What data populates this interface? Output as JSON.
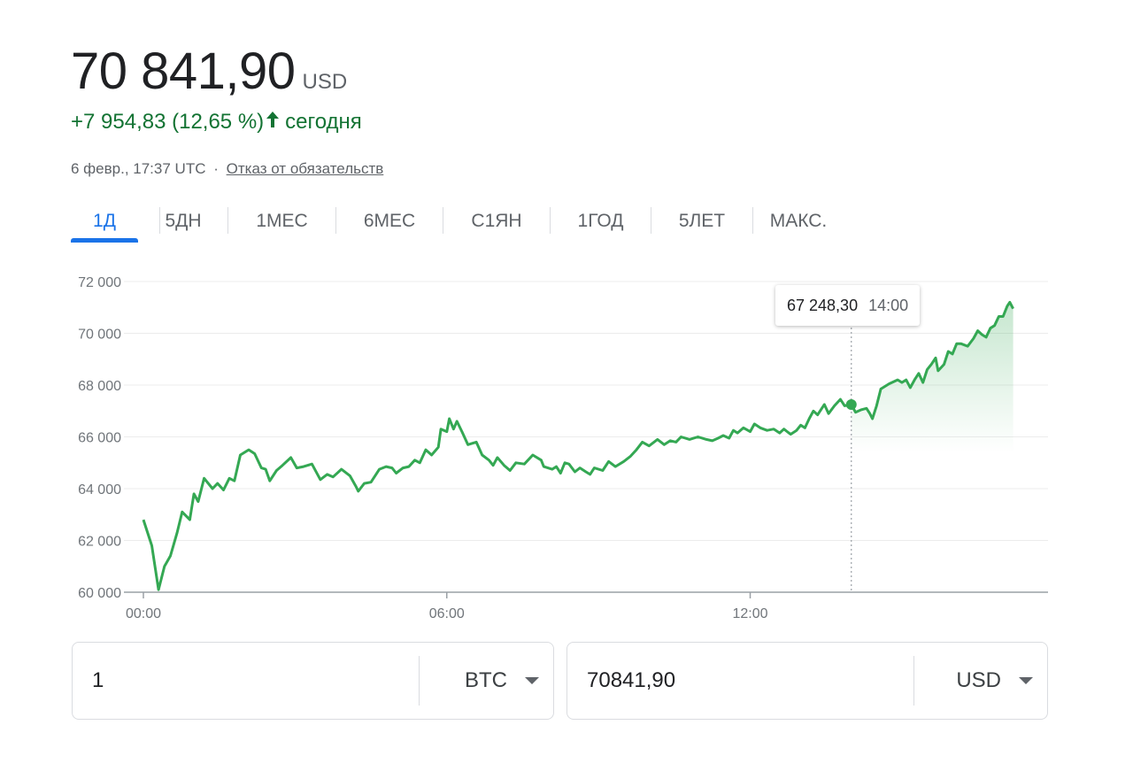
{
  "quote": {
    "price": "70 841,90",
    "currency": "USD",
    "change": "+7 954,83 (12,65 %)",
    "change_direction_icon": "arrow-up-icon",
    "change_suffix": "сегодня",
    "timestamp": "6 февр., 17:37 UTC",
    "separator": "·",
    "disclaimer_link": "Отказ от обязательств"
  },
  "colors": {
    "positive": "#137333",
    "line": "#34a853",
    "accent": "#1a73e8",
    "muted_text": "#5f6368"
  },
  "tabs": [
    {
      "label": "1Д",
      "active": true
    },
    {
      "label": "5ДН",
      "active": false
    },
    {
      "label": "1МЕС",
      "active": false
    },
    {
      "label": "6МЕС",
      "active": false
    },
    {
      "label": "С1ЯН",
      "active": false
    },
    {
      "label": "1ГОД",
      "active": false
    },
    {
      "label": "5ЛЕТ",
      "active": false
    },
    {
      "label": "МАКС.",
      "active": false
    }
  ],
  "tooltip": {
    "value": "67 248,30",
    "time": "14:00"
  },
  "chart_data": {
    "type": "area",
    "title": "",
    "xlabel": "",
    "ylabel": "",
    "ylim": [
      60000,
      72000
    ],
    "xlim": [
      "00:00",
      "17:45"
    ],
    "y_ticks": [
      "60 000",
      "62 000",
      "64 000",
      "66 000",
      "68 000",
      "70 000",
      "72 000"
    ],
    "x_ticks": [
      "00:00",
      "06:00",
      "12:00"
    ],
    "grid": true,
    "area_fill_from": "14:00",
    "highlight": {
      "time": "14:00",
      "value": 67248.3
    },
    "series": [
      {
        "values": [
          [
            "00:00",
            62800
          ],
          [
            "00:10",
            61800
          ],
          [
            "00:18",
            60100
          ],
          [
            "00:25",
            61000
          ],
          [
            "00:32",
            61400
          ],
          [
            "00:40",
            62300
          ],
          [
            "00:46",
            63100
          ],
          [
            "00:55",
            62800
          ],
          [
            "01:00",
            63800
          ],
          [
            "01:05",
            63500
          ],
          [
            "01:12",
            64400
          ],
          [
            "01:22",
            64000
          ],
          [
            "01:28",
            64200
          ],
          [
            "01:35",
            63950
          ],
          [
            "01:42",
            64400
          ],
          [
            "01:48",
            64300
          ],
          [
            "01:55",
            65300
          ],
          [
            "02:05",
            65500
          ],
          [
            "02:12",
            65350
          ],
          [
            "02:20",
            64800
          ],
          [
            "02:25",
            64750
          ],
          [
            "02:30",
            64300
          ],
          [
            "02:38",
            64700
          ],
          [
            "02:45",
            64900
          ],
          [
            "02:55",
            65200
          ],
          [
            "03:02",
            64800
          ],
          [
            "03:10",
            64850
          ],
          [
            "03:20",
            64950
          ],
          [
            "03:30",
            64350
          ],
          [
            "03:38",
            64550
          ],
          [
            "03:45",
            64450
          ],
          [
            "03:55",
            64750
          ],
          [
            "04:05",
            64500
          ],
          [
            "04:12",
            64100
          ],
          [
            "04:15",
            63900
          ],
          [
            "04:22",
            64200
          ],
          [
            "04:30",
            64250
          ],
          [
            "04:40",
            64750
          ],
          [
            "04:48",
            64850
          ],
          [
            "04:55",
            64800
          ],
          [
            "05:00",
            64600
          ],
          [
            "05:08",
            64800
          ],
          [
            "05:15",
            64850
          ],
          [
            "05:22",
            65100
          ],
          [
            "05:28",
            65000
          ],
          [
            "05:35",
            65500
          ],
          [
            "05:42",
            65300
          ],
          [
            "05:50",
            65600
          ],
          [
            "05:53",
            66300
          ],
          [
            "06:00",
            66200
          ],
          [
            "06:03",
            66700
          ],
          [
            "06:08",
            66300
          ],
          [
            "06:12",
            66600
          ],
          [
            "06:18",
            66200
          ],
          [
            "06:25",
            65700
          ],
          [
            "06:35",
            65800
          ],
          [
            "06:42",
            65300
          ],
          [
            "06:50",
            65100
          ],
          [
            "06:55",
            64900
          ],
          [
            "07:00",
            65200
          ],
          [
            "07:08",
            64900
          ],
          [
            "07:15",
            64700
          ],
          [
            "07:22",
            65000
          ],
          [
            "07:32",
            64950
          ],
          [
            "07:42",
            65300
          ],
          [
            "07:52",
            65100
          ],
          [
            "07:55",
            64850
          ],
          [
            "08:05",
            64750
          ],
          [
            "08:10",
            64850
          ],
          [
            "08:15",
            64600
          ],
          [
            "08:20",
            65000
          ],
          [
            "08:25",
            64950
          ],
          [
            "08:32",
            64650
          ],
          [
            "08:38",
            64800
          ],
          [
            "08:45",
            64650
          ],
          [
            "08:50",
            64550
          ],
          [
            "08:55",
            64800
          ],
          [
            "09:05",
            64700
          ],
          [
            "09:12",
            65050
          ],
          [
            "09:20",
            64850
          ],
          [
            "09:30",
            65050
          ],
          [
            "09:38",
            65250
          ],
          [
            "09:45",
            65500
          ],
          [
            "09:52",
            65800
          ],
          [
            "10:00",
            65650
          ],
          [
            "10:10",
            65900
          ],
          [
            "10:18",
            65700
          ],
          [
            "10:25",
            65850
          ],
          [
            "10:32",
            65800
          ],
          [
            "10:38",
            66000
          ],
          [
            "10:48",
            65900
          ],
          [
            "10:58",
            66000
          ],
          [
            "11:08",
            65900
          ],
          [
            "11:15",
            65850
          ],
          [
            "11:22",
            65950
          ],
          [
            "11:28",
            66050
          ],
          [
            "11:35",
            65950
          ],
          [
            "11:40",
            66250
          ],
          [
            "11:45",
            66150
          ],
          [
            "11:52",
            66350
          ],
          [
            "12:00",
            66200
          ],
          [
            "12:05",
            66500
          ],
          [
            "12:12",
            66350
          ],
          [
            "12:20",
            66250
          ],
          [
            "12:28",
            66300
          ],
          [
            "12:35",
            66150
          ],
          [
            "12:40",
            66300
          ],
          [
            "12:48",
            66100
          ],
          [
            "12:55",
            66250
          ],
          [
            "13:00",
            66450
          ],
          [
            "13:05",
            66350
          ],
          [
            "13:10",
            66700
          ],
          [
            "13:15",
            67000
          ],
          [
            "13:20",
            66850
          ],
          [
            "13:28",
            67250
          ],
          [
            "13:33",
            66900
          ],
          [
            "13:40",
            67200
          ],
          [
            "13:47",
            67450
          ],
          [
            "13:52",
            67200
          ],
          [
            "14:00",
            67248
          ],
          [
            "14:05",
            66950
          ],
          [
            "14:12",
            67050
          ],
          [
            "14:18",
            67100
          ],
          [
            "14:22",
            66900
          ],
          [
            "14:25",
            66700
          ],
          [
            "14:30",
            67200
          ],
          [
            "14:35",
            67850
          ],
          [
            "14:45",
            68050
          ],
          [
            "14:55",
            68200
          ],
          [
            "15:00",
            68100
          ],
          [
            "15:05",
            68200
          ],
          [
            "15:10",
            67900
          ],
          [
            "15:15",
            68200
          ],
          [
            "15:20",
            68450
          ],
          [
            "15:25",
            68100
          ],
          [
            "15:30",
            68600
          ],
          [
            "15:35",
            68800
          ],
          [
            "15:40",
            69050
          ],
          [
            "15:43",
            68550
          ],
          [
            "15:50",
            68800
          ],
          [
            "15:55",
            69300
          ],
          [
            "16:00",
            69200
          ],
          [
            "16:05",
            69600
          ],
          [
            "16:10",
            69600
          ],
          [
            "16:18",
            69500
          ],
          [
            "16:25",
            69800
          ],
          [
            "16:30",
            70100
          ],
          [
            "16:35",
            69950
          ],
          [
            "16:40",
            69850
          ],
          [
            "16:45",
            70200
          ],
          [
            "16:50",
            70300
          ],
          [
            "16:55",
            70650
          ],
          [
            "17:00",
            70650
          ],
          [
            "17:05",
            71050
          ],
          [
            "17:08",
            71200
          ],
          [
            "17:12",
            70950
          ]
        ]
      }
    ]
  },
  "converter": {
    "from_amount": "1",
    "from_currency": "BTC",
    "to_amount": "70841,90",
    "to_currency": "USD"
  }
}
